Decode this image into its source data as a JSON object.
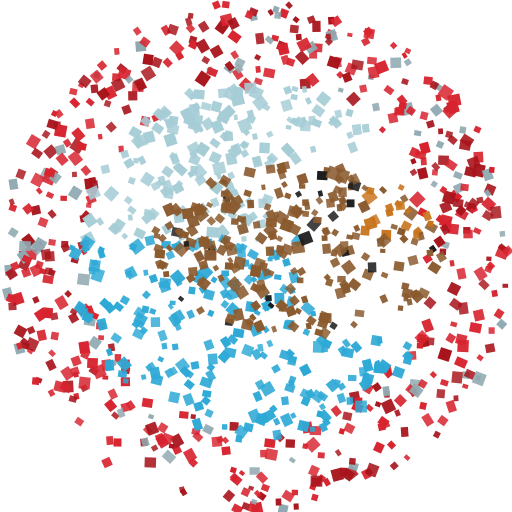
{
  "artwork": {
    "description_visible_text": "",
    "palette": {
      "red": "#d7232e",
      "dark_red": "#a8141c",
      "pale_blue": "#a6cdd6",
      "sky_blue": "#2ea9d6",
      "brown": "#8a5a2e",
      "orange": "#c8741c",
      "black": "#1a1a1a",
      "grey_blue": "#8fa9b0"
    },
    "regions": [
      {
        "name": "outer-ring",
        "colors": [
          "red",
          "dark_red",
          "grey_blue"
        ],
        "count": 520
      },
      {
        "name": "upper-left-cluster",
        "colors": [
          "pale_blue"
        ],
        "count": 190
      },
      {
        "name": "lower-left-cluster",
        "colors": [
          "sky_blue"
        ],
        "count": 230
      },
      {
        "name": "center-right-cluster",
        "colors": [
          "brown",
          "orange",
          "black"
        ],
        "count": 260
      }
    ]
  }
}
